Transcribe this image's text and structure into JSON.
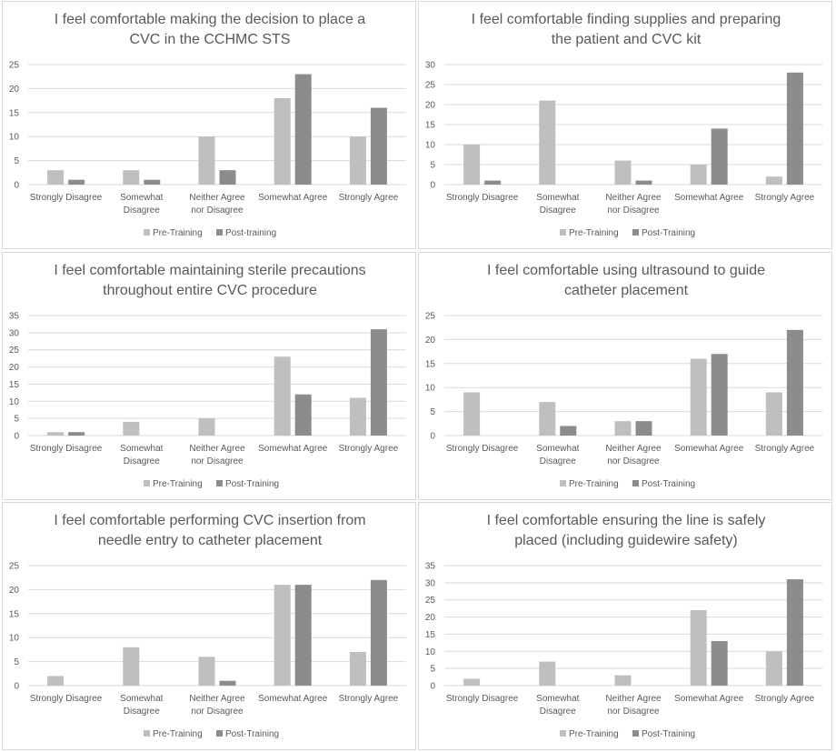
{
  "colors": {
    "pre": "#bfbfbf",
    "post": "#8c8c8c",
    "grid": "#d9d9d9",
    "text": "#595959"
  },
  "chart_data": [
    {
      "type": "bar",
      "title": [
        "I feel comfortable making the decision to place a",
        "CVC in the CCHMC STS"
      ],
      "categories": [
        [
          "Strongly Disagree"
        ],
        [
          "Somewhat",
          "Disagree"
        ],
        [
          "Neither Agree",
          "nor Disagree"
        ],
        [
          "Somewhat Agree"
        ],
        [
          "Strongly Agree"
        ]
      ],
      "series": [
        {
          "name": "Pre-Training",
          "values": [
            3,
            3,
            10,
            18,
            10
          ]
        },
        {
          "name": "Post-training",
          "values": [
            1,
            1,
            3,
            23,
            16
          ]
        }
      ],
      "ylim": [
        0,
        25
      ],
      "yticks": [
        0,
        5,
        10,
        15,
        20,
        25
      ],
      "grid": true,
      "legend": "bottom"
    },
    {
      "type": "bar",
      "title": [
        "I feel comfortable finding supplies and preparing",
        "the patient and CVC kit"
      ],
      "categories": [
        [
          "Strongly Disagree"
        ],
        [
          "Somewhat",
          "Disagree"
        ],
        [
          "Neither Agree",
          "nor Disagree"
        ],
        [
          "Somewhat Agree"
        ],
        [
          "Strongly Agree"
        ]
      ],
      "series": [
        {
          "name": "Pre-Training",
          "values": [
            10,
            21,
            6,
            5,
            2
          ]
        },
        {
          "name": "Post-Training",
          "values": [
            1,
            0,
            1,
            14,
            28
          ]
        }
      ],
      "ylim": [
        0,
        30
      ],
      "yticks": [
        0,
        5,
        10,
        15,
        20,
        25,
        30
      ],
      "grid": true,
      "legend": "bottom"
    },
    {
      "type": "bar",
      "title": [
        "I feel comfortable maintaining sterile precautions",
        "throughout entire CVC procedure"
      ],
      "categories": [
        [
          "Strongly Disagree"
        ],
        [
          "Somewhat",
          "Disagree"
        ],
        [
          "Neither Agree",
          "nor Disagree"
        ],
        [
          "Somewhat Agree"
        ],
        [
          "Strongly Agree"
        ]
      ],
      "series": [
        {
          "name": "Pre-Training",
          "values": [
            1,
            4,
            5,
            23,
            11
          ]
        },
        {
          "name": "Post-Training",
          "values": [
            1,
            0,
            0,
            12,
            31
          ]
        }
      ],
      "ylim": [
        0,
        35
      ],
      "yticks": [
        0,
        5,
        10,
        15,
        20,
        25,
        30,
        35
      ],
      "grid": true,
      "legend": "bottom"
    },
    {
      "type": "bar",
      "title": [
        "I feel comfortable using ultrasound to guide",
        "catheter placement"
      ],
      "categories": [
        [
          "Strongly Disagree"
        ],
        [
          "Somewhat",
          "Disagree"
        ],
        [
          "Neither Agree",
          "nor Disagree"
        ],
        [
          "Somewhat Agree"
        ],
        [
          "Strongly Agree"
        ]
      ],
      "series": [
        {
          "name": "Pre-Training",
          "values": [
            9,
            7,
            3,
            16,
            9
          ]
        },
        {
          "name": "Post-Training",
          "values": [
            0,
            2,
            3,
            17,
            22
          ]
        }
      ],
      "ylim": [
        0,
        25
      ],
      "yticks": [
        0,
        5,
        10,
        15,
        20,
        25
      ],
      "grid": true,
      "legend": "bottom"
    },
    {
      "type": "bar",
      "title": [
        "I feel comfortable performing CVC insertion from",
        "needle entry to catheter placement"
      ],
      "categories": [
        [
          "Strongly Disagree"
        ],
        [
          "Somewhat",
          "Disagree"
        ],
        [
          "Neither Agree",
          "nor Disagree"
        ],
        [
          "Somewhat Agree"
        ],
        [
          "Strongly Agree"
        ]
      ],
      "series": [
        {
          "name": "Pre-Training",
          "values": [
            2,
            8,
            6,
            21,
            7
          ]
        },
        {
          "name": "Post-Training",
          "values": [
            0,
            0,
            1,
            21,
            22
          ]
        }
      ],
      "ylim": [
        0,
        25
      ],
      "yticks": [
        0,
        5,
        10,
        15,
        20,
        25
      ],
      "grid": true,
      "legend": "bottom"
    },
    {
      "type": "bar",
      "title": [
        "I feel comfortable ensuring the line is safely",
        "placed (including guidewire safety)"
      ],
      "categories": [
        [
          "Strongly Disagree"
        ],
        [
          "Somewhat",
          "Disagree"
        ],
        [
          "Neither Agree",
          "nor Disagree"
        ],
        [
          "Somewhat Agree"
        ],
        [
          "Strongly Agree"
        ]
      ],
      "series": [
        {
          "name": "Pre-Training",
          "values": [
            2,
            7,
            3,
            22,
            10
          ]
        },
        {
          "name": "Post-Training",
          "values": [
            0,
            0,
            0,
            13,
            31
          ]
        }
      ],
      "ylim": [
        0,
        35
      ],
      "yticks": [
        0,
        5,
        10,
        15,
        20,
        25,
        30,
        35
      ],
      "grid": true,
      "legend": "bottom"
    }
  ]
}
